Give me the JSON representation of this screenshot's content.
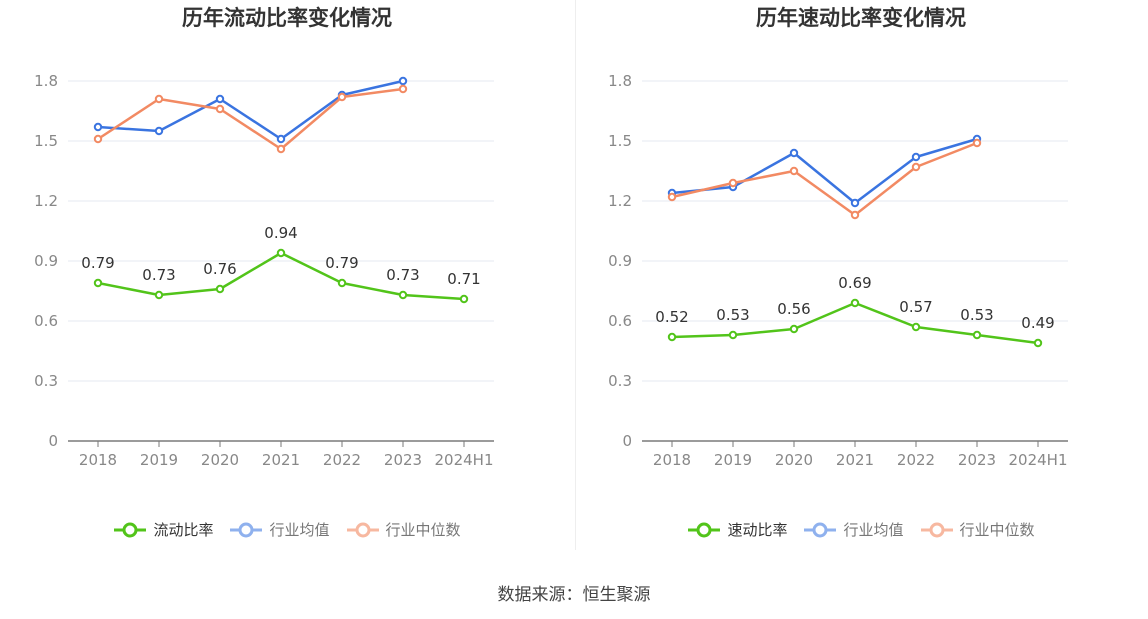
{
  "source": "数据来源：恒生聚源",
  "chart_data": [
    {
      "type": "line",
      "title": "历年流动比率变化情况",
      "categories": [
        "2018",
        "2019",
        "2020",
        "2021",
        "2022",
        "2023",
        "2024H1"
      ],
      "ylim": [
        0,
        1.8
      ],
      "yticks": [
        "0",
        "0.3",
        "0.6",
        "0.9",
        "1.2",
        "1.5",
        "1.8"
      ],
      "grid": true,
      "legend_position": "bottom-center",
      "series": [
        {
          "name": "流动比率",
          "color": "#52c41a",
          "values": [
            0.79,
            0.73,
            0.76,
            0.94,
            0.79,
            0.73,
            0.71
          ],
          "labels": [
            "0.79",
            "0.73",
            "0.76",
            "0.94",
            "0.79",
            "0.73",
            "0.71"
          ]
        },
        {
          "name": "行业均值",
          "color": "#3a74e0",
          "values": [
            1.57,
            1.55,
            1.71,
            1.51,
            1.73,
            1.8,
            null
          ]
        },
        {
          "name": "行业中位数",
          "color": "#f28a63",
          "values": [
            1.51,
            1.71,
            1.66,
            1.46,
            1.72,
            1.76,
            null
          ]
        }
      ]
    },
    {
      "type": "line",
      "title": "历年速动比率变化情况",
      "categories": [
        "2018",
        "2019",
        "2020",
        "2021",
        "2022",
        "2023",
        "2024H1"
      ],
      "ylim": [
        0,
        1.8
      ],
      "yticks": [
        "0",
        "0.3",
        "0.6",
        "0.9",
        "1.2",
        "1.5",
        "1.8"
      ],
      "grid": true,
      "legend_position": "bottom-center",
      "series": [
        {
          "name": "速动比率",
          "color": "#52c41a",
          "values": [
            0.52,
            0.53,
            0.56,
            0.69,
            0.57,
            0.53,
            0.49
          ],
          "labels": [
            "0.52",
            "0.53",
            "0.56",
            "0.69",
            "0.57",
            "0.53",
            "0.49"
          ]
        },
        {
          "name": "行业均值",
          "color": "#3a74e0",
          "values": [
            1.24,
            1.27,
            1.44,
            1.19,
            1.42,
            1.51,
            null
          ]
        },
        {
          "name": "行业中位数",
          "color": "#f28a63",
          "values": [
            1.22,
            1.29,
            1.35,
            1.13,
            1.37,
            1.49,
            null
          ]
        }
      ]
    }
  ],
  "legend_colors": {
    "active": "#52c41a",
    "avg_faded": "#8fb1ee",
    "median_faded": "#f7b8a0"
  }
}
